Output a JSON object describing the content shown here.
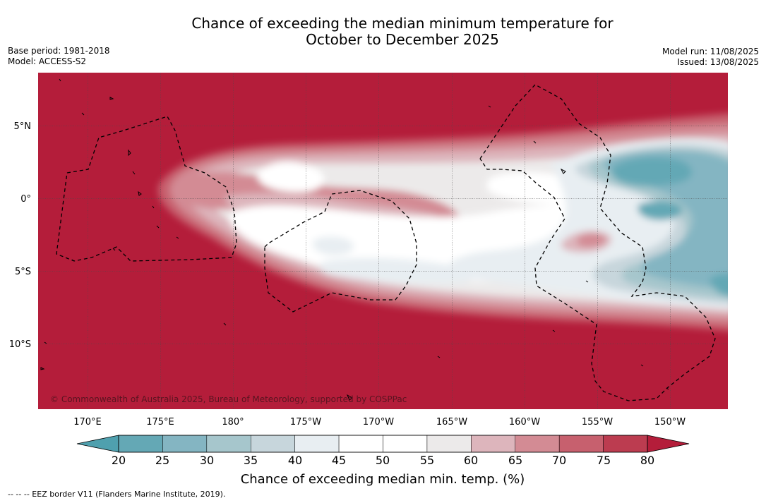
{
  "title_line1": "Chance of exceeding the median minimum temperature for",
  "title_line2": "October to December 2025",
  "base_period": "Base period: 1981-2018",
  "model": "Model: ACCESS-S2",
  "model_run": "Model run: 11/08/2025",
  "issued": "Issued: 13/08/2025",
  "copyright": "© Commonwealth of Australia 2025, Bureau of Meteorology, supported by COSPPac",
  "footnote": "--  --  -- EEZ border V11 (Flanders Marine Institute, 2019).",
  "map": {
    "lon_ticks": [
      "170°E",
      "175°E",
      "180°",
      "175°W",
      "170°W",
      "165°W",
      "160°W",
      "155°W",
      "150°W"
    ],
    "lat_ticks": [
      "5°N",
      "0°",
      "5°S",
      "10°S"
    ]
  },
  "colorbar": {
    "title": "Chance of exceeding median min. temp. (%)",
    "ticks": [
      "20",
      "25",
      "30",
      "35",
      "40",
      "45",
      "50",
      "55",
      "60",
      "65",
      "70",
      "75",
      "80"
    ],
    "colors": [
      "#64a8b5",
      "#84b5c2",
      "#a6c6cc",
      "#c7d6dc",
      "#e8eef2",
      "#ffffff",
      "#ffffff",
      "#eceaea",
      "#ddb5bc",
      "#d38b94",
      "#c7606e",
      "#bc3c50"
    ],
    "under_color": "#4fa0ae",
    "over_color": "#b41d3a"
  },
  "colors": {
    "hot": "#b41d3a",
    "coast": "#000000"
  }
}
